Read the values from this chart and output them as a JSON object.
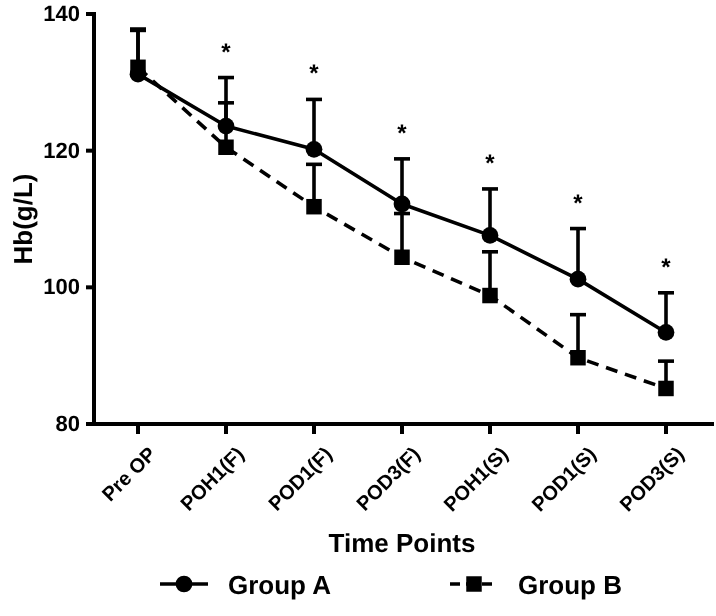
{
  "chart_data": {
    "type": "line",
    "xlabel": "Time Points",
    "ylabel": "Hb(g/L)",
    "categories": [
      "Pre OP",
      "POH1(F)",
      "POD1(F)",
      "POD3(F)",
      "POH1(S)",
      "POD1(S)",
      "POD3(S)"
    ],
    "series": [
      {
        "name": "Group A",
        "color": "#000000",
        "marker": "circle",
        "line_style": "solid",
        "values": [
          131.2,
          123.6,
          120.2,
          112.2,
          107.6,
          101.2,
          93.4
        ],
        "errors": [
          [
            131.2,
            137.8
          ],
          [
            123.6,
            130.7
          ],
          [
            120.2,
            127.5
          ],
          [
            112.2,
            118.8
          ],
          [
            107.6,
            114.4
          ],
          [
            101.2,
            108.6
          ],
          [
            93.4,
            99.2
          ]
        ]
      },
      {
        "name": "Group B",
        "color": "#000000",
        "marker": "square",
        "line_style": "dashed",
        "values": [
          132.2,
          120.5,
          111.8,
          104.4,
          98.8,
          89.7,
          85.2
        ],
        "errors": [
          [
            132.2,
            137.6
          ],
          [
            120.5,
            127
          ],
          [
            111.8,
            118
          ],
          [
            104.4,
            110.8
          ],
          [
            98.8,
            105.2
          ],
          [
            89.7,
            96
          ],
          [
            85.2,
            89.2
          ]
        ]
      }
    ],
    "ylim": [
      80,
      140
    ],
    "yticks": [
      80,
      100,
      120,
      140
    ],
    "grid": false,
    "legend": "bottom",
    "annotations": [
      "*",
      "*",
      "*",
      "*",
      "*",
      "*"
    ]
  }
}
